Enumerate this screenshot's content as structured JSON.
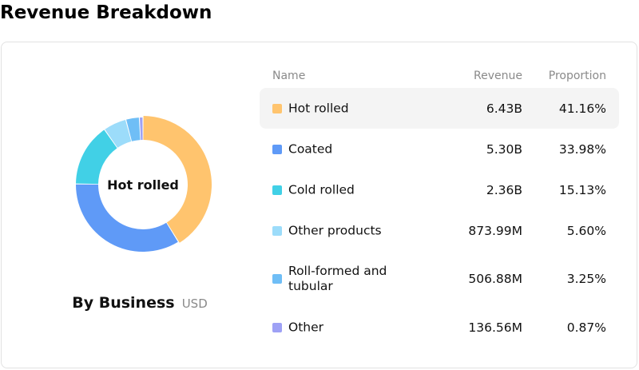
{
  "title": "Revenue Breakdown",
  "chart": {
    "center_label": "Hot rolled",
    "subtitle": "By Business",
    "unit": "USD"
  },
  "table": {
    "headers": {
      "name": "Name",
      "revenue": "Revenue",
      "proportion": "Proportion"
    },
    "active_row": 0
  },
  "chart_data": {
    "type": "pie",
    "title": "Revenue Breakdown",
    "subtitle": "By Business",
    "unit": "USD",
    "legend": "right",
    "slices": [
      {
        "name": "Hot rolled",
        "value": "6.43B",
        "proportion": "41.16%",
        "percent": 41.16,
        "color": "#FFC46E"
      },
      {
        "name": "Coated",
        "value": "5.30B",
        "proportion": "33.98%",
        "percent": 33.98,
        "color": "#5F9AF7"
      },
      {
        "name": "Cold rolled",
        "value": "2.36B",
        "proportion": "15.13%",
        "percent": 15.13,
        "color": "#41D0E6"
      },
      {
        "name": "Other products",
        "value": "873.99M",
        "proportion": "5.60%",
        "percent": 5.6,
        "color": "#9CDCFA"
      },
      {
        "name": "Roll-formed and tubular",
        "value": "506.88M",
        "proportion": "3.25%",
        "percent": 3.25,
        "color": "#6FBEF6"
      },
      {
        "name": "Other",
        "value": "136.56M",
        "proportion": "0.87%",
        "percent": 0.87,
        "color": "#9EA1F5"
      }
    ]
  }
}
